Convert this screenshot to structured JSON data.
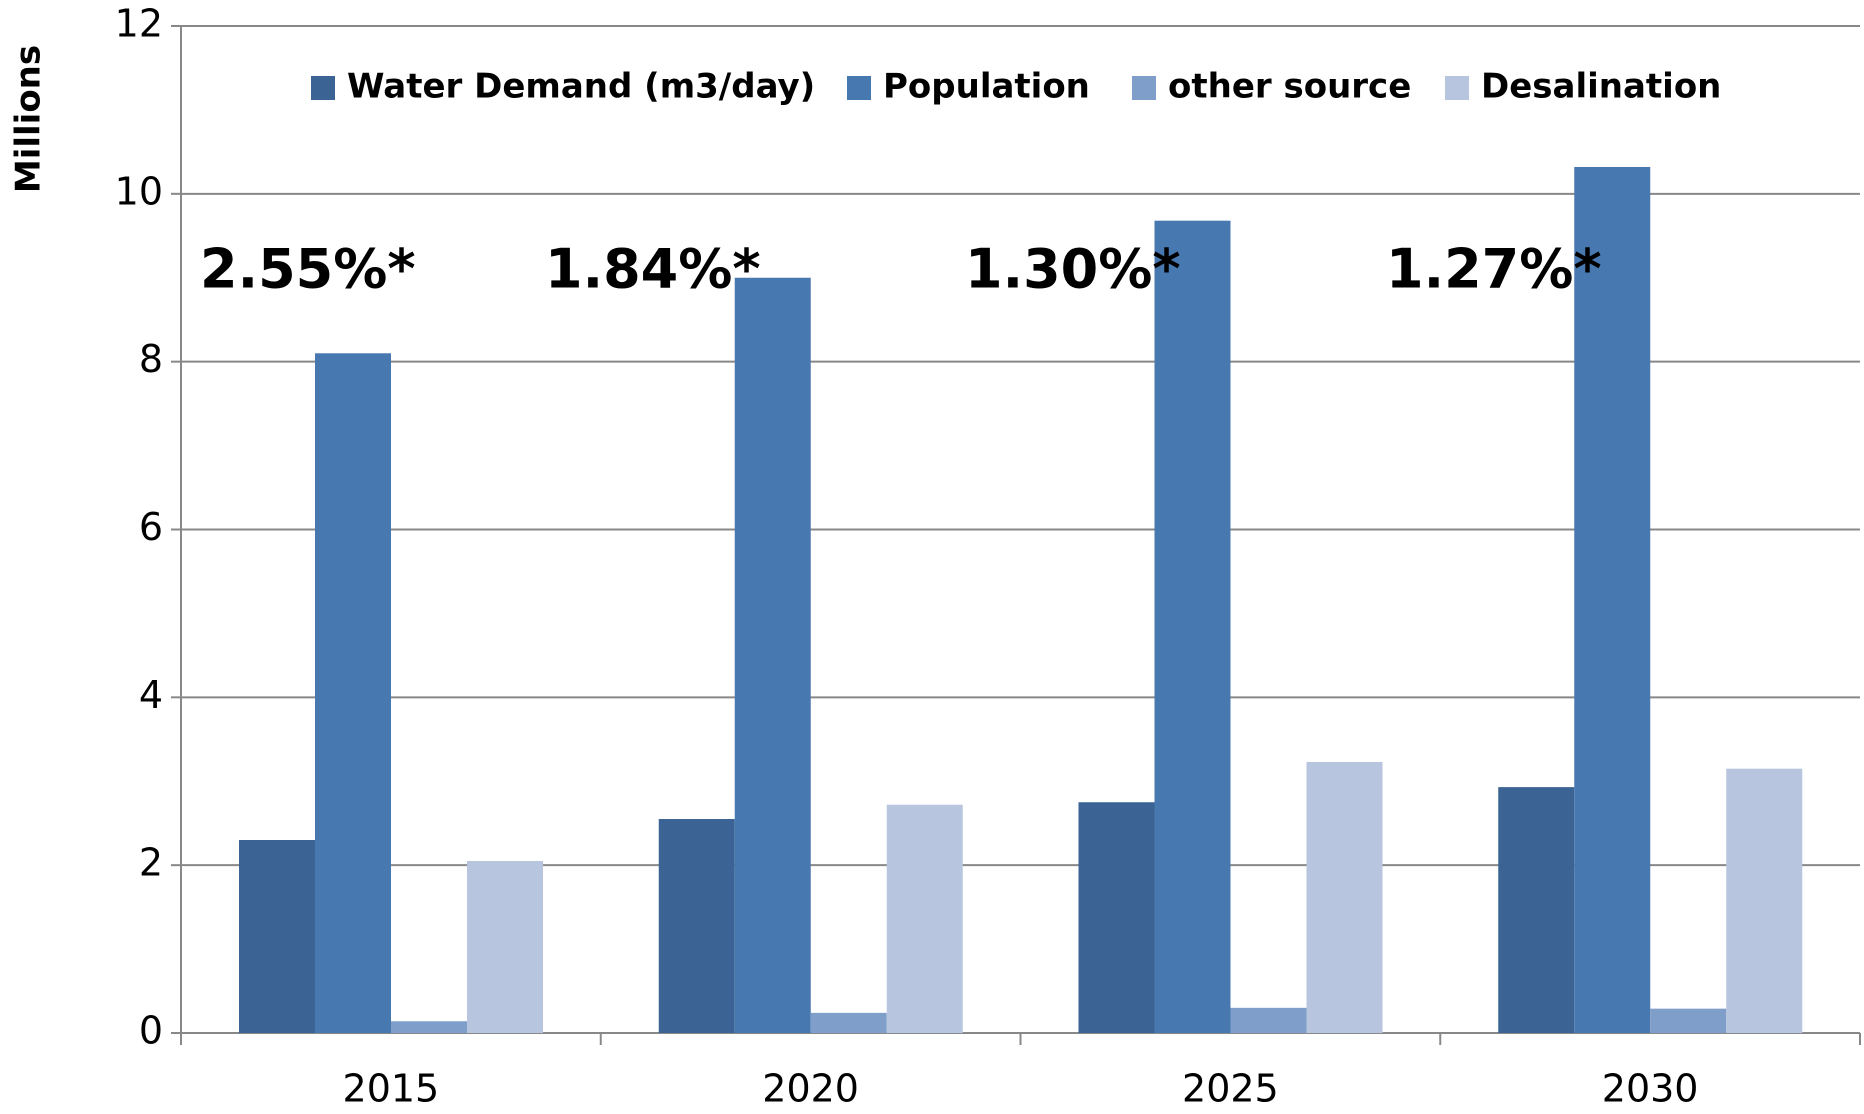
{
  "chart_data": {
    "type": "bar",
    "ylabel": "Millions",
    "categories": [
      "2015",
      "2020",
      "2025",
      "2030"
    ],
    "series": [
      {
        "name": "Water Demand (m3/day)",
        "color": "#3b6494",
        "values": [
          2.3,
          2.55,
          2.75,
          2.93
        ]
      },
      {
        "name": "Population",
        "color": "#4878b0",
        "values": [
          8.1,
          9.0,
          9.68,
          10.32
        ]
      },
      {
        "name": "other source",
        "color": "#7f9fca",
        "values": [
          0.14,
          0.24,
          0.3,
          0.29
        ]
      },
      {
        "name": "Desalination",
        "color": "#b7c5de",
        "values": [
          2.05,
          2.72,
          3.23,
          3.15
        ]
      }
    ],
    "annotations": [
      "2.55%*",
      "1.84%*",
      "1.30%*",
      "1.27%*"
    ],
    "ylim": [
      0,
      12
    ],
    "yticks": [
      0,
      2,
      4,
      6,
      8,
      10,
      12
    ],
    "grid": true,
    "legend": "top"
  }
}
